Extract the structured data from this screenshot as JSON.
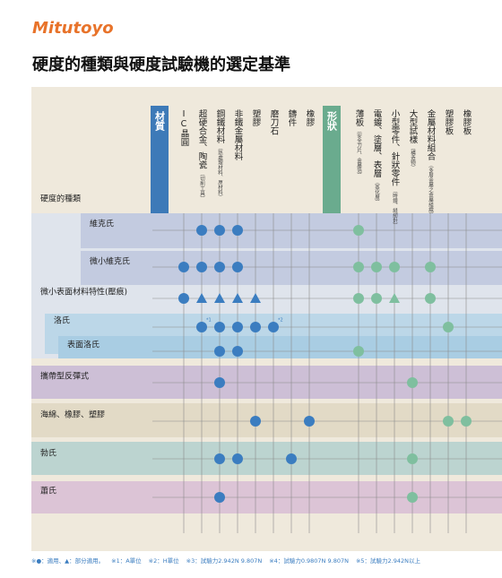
{
  "header": {
    "logo": "Mitutoyo",
    "title": "硬度的種類與硬度試驗機的選定基準"
  },
  "matrix": {
    "row_header": "硬度的種類",
    "groups": [
      {
        "label": "材質",
        "items": [
          {
            "label": "IC晶圓"
          },
          {
            "label": "超硬合金、陶瓷",
            "sub": "（切削工具）"
          },
          {
            "label": "鋼鐵材料",
            "sub": "（熱處理材料、原材料）"
          },
          {
            "label": "非鐵金屬材料"
          },
          {
            "label": "塑膠"
          },
          {
            "label": "磨刀石"
          },
          {
            "label": "鑄件"
          },
          {
            "label": "橡膠"
          }
        ]
      },
      {
        "label": "形狀",
        "items": [
          {
            "label": "薄板",
            "sub": "（安全刀片、金屬箔）"
          },
          {
            "label": "電鍍、塗層、表層",
            "sub": "（蒸化層）"
          },
          {
            "label": "小型零件、針狀零件",
            "sub": "（時鐘、縫紉針）"
          },
          {
            "label": "大型試樣",
            "sub": "（構造物）"
          },
          {
            "label": "金屬材料組合",
            "sub": "（多層金屬之金屬組織）"
          },
          {
            "label": "塑膠板"
          },
          {
            "label": "橡膠板"
          }
        ]
      }
    ],
    "rows": [
      {
        "label": "維克氏",
        "cells": [
          [
            null,
            "●",
            "●",
            "●",
            null,
            null,
            null,
            null
          ],
          [
            "●",
            null,
            null,
            null,
            null,
            null,
            null
          ]
        ]
      },
      {
        "label": "微小維克氏",
        "cells": [
          [
            "●",
            "●",
            "●",
            "●",
            null,
            null,
            null,
            null
          ],
          [
            "●",
            "●",
            "●",
            null,
            "●",
            null,
            null
          ]
        ]
      },
      {
        "label": "微小表面材料特性(壓痕)",
        "cells": [
          [
            "●",
            "▲",
            "▲",
            "▲",
            "▲",
            null,
            null,
            null
          ],
          [
            "●",
            "●",
            "▲",
            null,
            "●",
            null,
            null
          ]
        ]
      },
      {
        "label": "洛氏",
        "cells": [
          [
            null,
            "●",
            "●",
            "●",
            "●",
            "●",
            null,
            null
          ],
          [
            null,
            null,
            null,
            null,
            null,
            "●",
            null
          ]
        ],
        "notes": [
          null,
          "*1",
          null,
          null,
          null,
          "*2",
          null,
          null
        ]
      },
      {
        "label": "表面洛氏",
        "cells": [
          [
            null,
            null,
            "●",
            "●",
            null,
            null,
            null,
            null
          ],
          [
            "●",
            null,
            null,
            null,
            null,
            null,
            null
          ]
        ]
      },
      {
        "label": "攜帶型反彈式",
        "cells": [
          [
            null,
            null,
            "●",
            null,
            null,
            null,
            null,
            null
          ],
          [
            null,
            null,
            null,
            "●",
            null,
            null,
            null
          ]
        ]
      },
      {
        "label": "海綿、橡膠、塑膠",
        "cells": [
          [
            null,
            null,
            null,
            null,
            "●",
            null,
            null,
            "●"
          ],
          [
            null,
            null,
            null,
            null,
            null,
            "●",
            "●"
          ]
        ]
      },
      {
        "label": "勃氏",
        "cells": [
          [
            null,
            null,
            "●",
            "●",
            null,
            null,
            "●",
            null
          ],
          [
            null,
            null,
            null,
            "●",
            null,
            null,
            null
          ]
        ]
      },
      {
        "label": "蕭氏",
        "cells": [
          [
            null,
            null,
            "●",
            null,
            null,
            null,
            null,
            null
          ],
          [
            null,
            null,
            null,
            "●",
            null,
            null,
            null
          ]
        ]
      }
    ],
    "footnotes": [
      "※●：適用、▲：部分適用。",
      "※1：A單位",
      "※2：H單位",
      "※3：試驗力2.942N 9.807N",
      "※4：試驗力0.9807N 9.807N",
      "※5：試驗力2.942N以上"
    ]
  }
}
